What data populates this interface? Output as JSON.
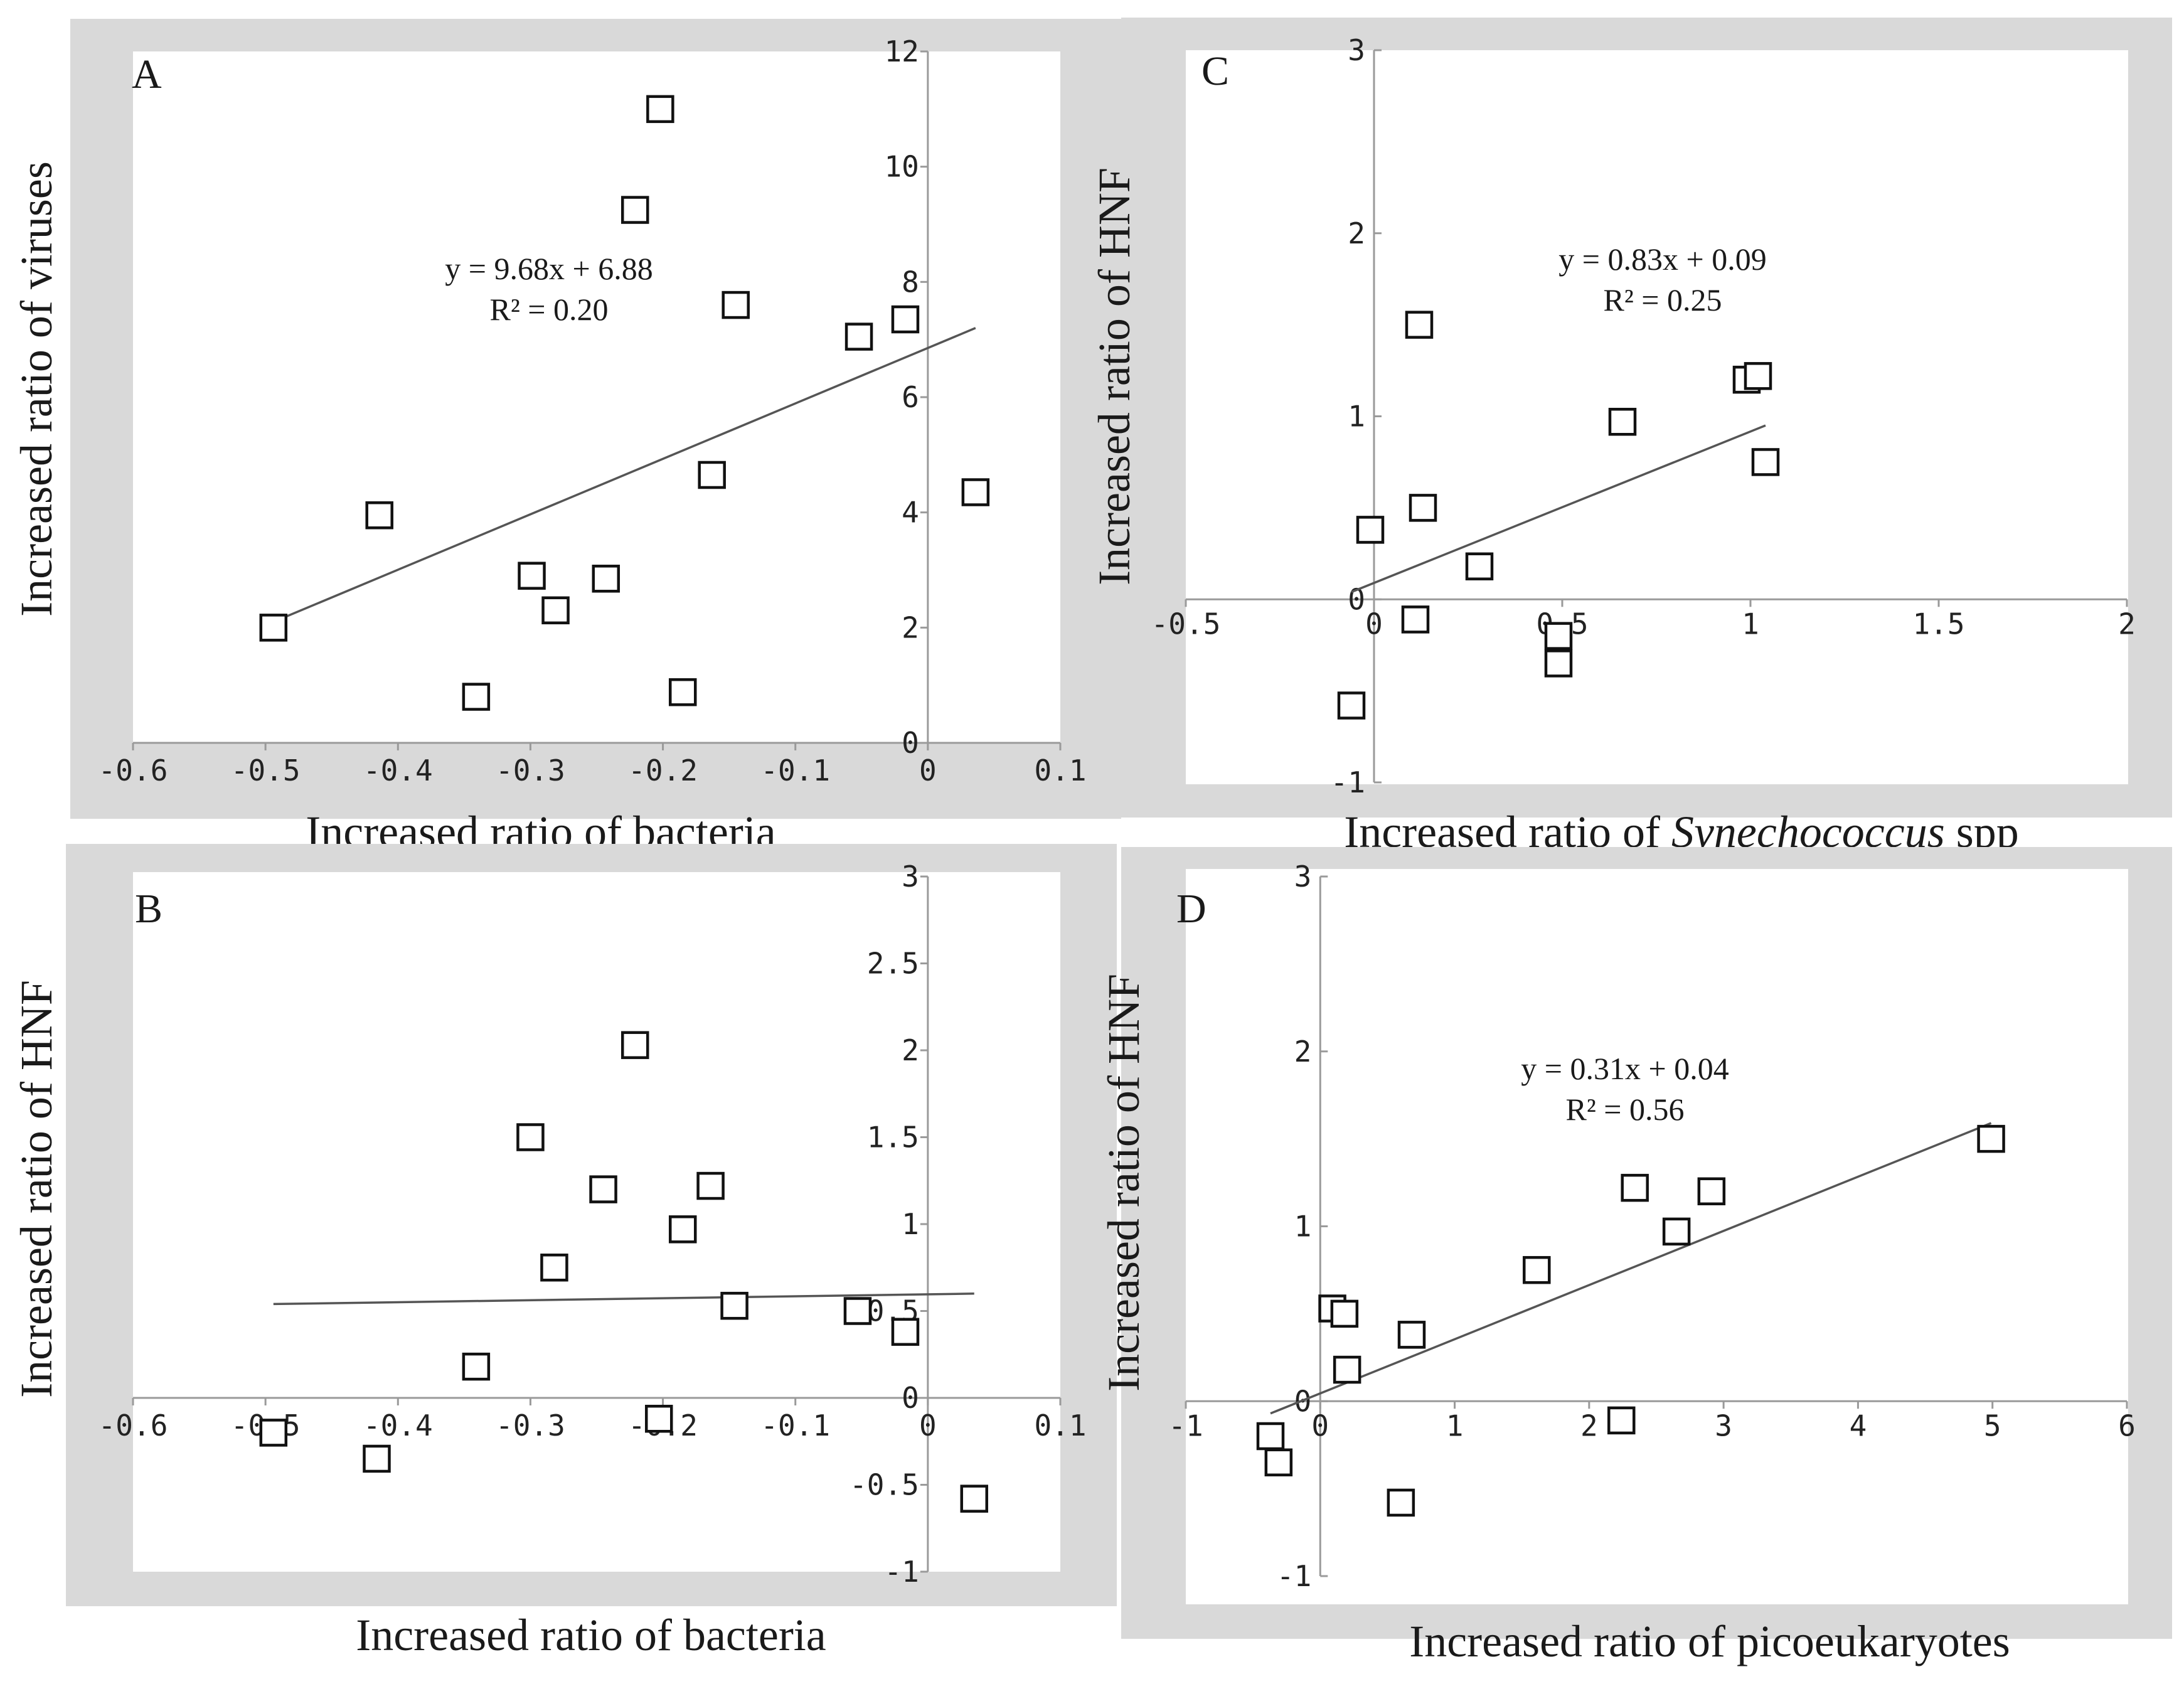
{
  "figure": {
    "background": "#ffffff",
    "panel_color": "#d9d9d9",
    "marker": "open-square"
  },
  "chart_data": [
    {
      "id": "A",
      "type": "scatter",
      "label": "A",
      "xlabel": "Increased ratio of bacteria",
      "ylabel": "Increased ratio of viruses",
      "xlim": [
        -0.6,
        0.1
      ],
      "ylim": [
        0,
        12
      ],
      "x_ticks": [
        {
          "value": -0.6,
          "label": "-0.6"
        },
        {
          "value": -0.5,
          "label": "-0.5"
        },
        {
          "value": -0.4,
          "label": "-0.4"
        },
        {
          "value": -0.3,
          "label": "-0.3"
        },
        {
          "value": -0.2,
          "label": "-0.2"
        },
        {
          "value": -0.1,
          "label": "-0.1"
        },
        {
          "value": 0,
          "label": "0"
        },
        {
          "value": 0.1,
          "label": "0.1"
        }
      ],
      "y_ticks": [
        {
          "value": 0,
          "label": "0"
        },
        {
          "value": 2,
          "label": "2"
        },
        {
          "value": 4,
          "label": "4"
        },
        {
          "value": 6,
          "label": "6"
        },
        {
          "value": 8,
          "label": "8"
        },
        {
          "value": 10,
          "label": "10"
        },
        {
          "value": 12,
          "label": "12"
        }
      ],
      "points": [
        {
          "x": -0.494,
          "y": 2.0
        },
        {
          "x": -0.414,
          "y": 3.95
        },
        {
          "x": -0.341,
          "y": 0.8
        },
        {
          "x": -0.299,
          "y": 2.9
        },
        {
          "x": -0.281,
          "y": 2.3
        },
        {
          "x": -0.243,
          "y": 2.85
        },
        {
          "x": -0.221,
          "y": 9.25
        },
        {
          "x": -0.202,
          "y": 11.0
        },
        {
          "x": -0.185,
          "y": 0.88
        },
        {
          "x": -0.163,
          "y": 4.65
        },
        {
          "x": -0.145,
          "y": 7.6
        },
        {
          "x": -0.052,
          "y": 7.05
        },
        {
          "x": -0.017,
          "y": 7.35
        },
        {
          "x": 0.036,
          "y": 4.35
        }
      ],
      "trendline": {
        "x1": -0.494,
        "y1": 2.1,
        "x2": 0.036,
        "y2": 7.2
      },
      "equation": "y = 9.68x + 6.88",
      "r2": "R² = 0.20"
    },
    {
      "id": "B",
      "type": "scatter",
      "label": "B",
      "xlabel": "Increased ratio of bacteria",
      "ylabel": "Increased ratio of HNF",
      "xlim": [
        -0.6,
        0.1
      ],
      "ylim": [
        -1,
        3
      ],
      "x_ticks": [
        {
          "value": -0.6,
          "label": "-0.6"
        },
        {
          "value": -0.5,
          "label": "-0.5"
        },
        {
          "value": -0.4,
          "label": "-0.4"
        },
        {
          "value": -0.3,
          "label": "-0.3"
        },
        {
          "value": -0.2,
          "label": "-0.2"
        },
        {
          "value": -0.1,
          "label": "-0.1"
        },
        {
          "value": 0,
          "label": "0"
        },
        {
          "value": 0.1,
          "label": "0.1"
        }
      ],
      "y_ticks": [
        {
          "value": -1,
          "label": "-1"
        },
        {
          "value": -0.5,
          "label": "-0.5"
        },
        {
          "value": 0,
          "label": "0"
        },
        {
          "value": 0.5,
          "label": "0.5"
        },
        {
          "value": 1,
          "label": "1"
        },
        {
          "value": 1.5,
          "label": "1.5"
        },
        {
          "value": 2,
          "label": "2"
        },
        {
          "value": 2.5,
          "label": "2.5"
        },
        {
          "value": 3,
          "label": "3"
        }
      ],
      "points": [
        {
          "x": -0.494,
          "y": -0.2
        },
        {
          "x": -0.416,
          "y": -0.35
        },
        {
          "x": -0.341,
          "y": 0.18
        },
        {
          "x": -0.3,
          "y": 1.5
        },
        {
          "x": -0.282,
          "y": 0.75
        },
        {
          "x": -0.245,
          "y": 1.2
        },
        {
          "x": -0.221,
          "y": 2.03
        },
        {
          "x": -0.203,
          "y": -0.12
        },
        {
          "x": -0.185,
          "y": 0.97
        },
        {
          "x": -0.164,
          "y": 1.22
        },
        {
          "x": -0.146,
          "y": 0.53
        },
        {
          "x": -0.053,
          "y": 0.5
        },
        {
          "x": -0.017,
          "y": 0.38
        },
        {
          "x": 0.035,
          "y": -0.58
        }
      ],
      "trendline": {
        "x1": -0.494,
        "y1": 0.54,
        "x2": 0.035,
        "y2": 0.6
      },
      "equation": "",
      "r2": ""
    },
    {
      "id": "C",
      "type": "scatter",
      "label": "C",
      "xlabel_parts": [
        "Increased ratio of ",
        "Synechococcus",
        " spp"
      ],
      "ylabel": "Increased ratio of HNF",
      "xlim": [
        -0.5,
        2
      ],
      "ylim": [
        -1,
        3
      ],
      "x_ticks": [
        {
          "value": -0.5,
          "label": "-0.5"
        },
        {
          "value": 0,
          "label": "0"
        },
        {
          "value": 0.5,
          "label": "0.5"
        },
        {
          "value": 1,
          "label": "1"
        },
        {
          "value": 1.5,
          "label": "1.5"
        },
        {
          "value": 2,
          "label": "2"
        }
      ],
      "y_ticks": [
        {
          "value": -1,
          "label": "-1"
        },
        {
          "value": 0,
          "label": "0"
        },
        {
          "value": 1,
          "label": "1"
        },
        {
          "value": 2,
          "label": "2"
        },
        {
          "value": 3,
          "label": "3"
        }
      ],
      "points": [
        {
          "x": -0.06,
          "y": -0.58
        },
        {
          "x": -0.01,
          "y": 0.38
        },
        {
          "x": 0.11,
          "y": -0.11
        },
        {
          "x": 0.12,
          "y": 1.5
        },
        {
          "x": 0.13,
          "y": 0.5
        },
        {
          "x": 0.28,
          "y": 0.18
        },
        {
          "x": 0.49,
          "y": -0.2
        },
        {
          "x": 0.49,
          "y": -0.35
        },
        {
          "x": 0.66,
          "y": 0.97
        },
        {
          "x": 0.99,
          "y": 1.2
        },
        {
          "x": 1.02,
          "y": 1.22
        },
        {
          "x": 1.04,
          "y": 0.75
        }
      ],
      "trendline": {
        "x1": -0.06,
        "y1": 0.04,
        "x2": 1.04,
        "y2": 0.95
      },
      "equation": "y = 0.83x + 0.09",
      "r2": "R² = 0.25"
    },
    {
      "id": "D",
      "type": "scatter",
      "label": "D",
      "xlabel": "Increased ratio of picoeukaryotes",
      "ylabel": "Increased ratio of HNF",
      "xlim": [
        -1,
        6
      ],
      "ylim": [
        -1,
        3
      ],
      "x_ticks": [
        {
          "value": -1,
          "label": "-1"
        },
        {
          "value": 0,
          "label": "0"
        },
        {
          "value": 1,
          "label": "1"
        },
        {
          "value": 2,
          "label": "2"
        },
        {
          "value": 3,
          "label": "3"
        },
        {
          "value": 4,
          "label": "4"
        },
        {
          "value": 5,
          "label": "5"
        },
        {
          "value": 6,
          "label": "6"
        }
      ],
      "y_ticks": [
        {
          "value": -1,
          "label": "-1"
        },
        {
          "value": 0,
          "label": "0"
        },
        {
          "value": 1,
          "label": "1"
        },
        {
          "value": 2,
          "label": "2"
        },
        {
          "value": 3,
          "label": "3"
        }
      ],
      "points": [
        {
          "x": -0.37,
          "y": -0.2
        },
        {
          "x": -0.31,
          "y": -0.35
        },
        {
          "x": 0.09,
          "y": 0.53
        },
        {
          "x": 0.18,
          "y": 0.5
        },
        {
          "x": 0.2,
          "y": 0.18
        },
        {
          "x": 0.6,
          "y": -0.58
        },
        {
          "x": 0.68,
          "y": 0.38
        },
        {
          "x": 1.61,
          "y": 0.75
        },
        {
          "x": 2.24,
          "y": -0.11
        },
        {
          "x": 2.34,
          "y": 1.22
        },
        {
          "x": 2.65,
          "y": 0.97
        },
        {
          "x": 2.91,
          "y": 1.2
        },
        {
          "x": 4.99,
          "y": 1.5
        }
      ],
      "trendline": {
        "x1": -0.37,
        "y1": -0.07,
        "x2": 4.99,
        "y2": 1.59
      },
      "equation": "y = 0.31x + 0.04",
      "r2": "R² = 0.56"
    }
  ]
}
